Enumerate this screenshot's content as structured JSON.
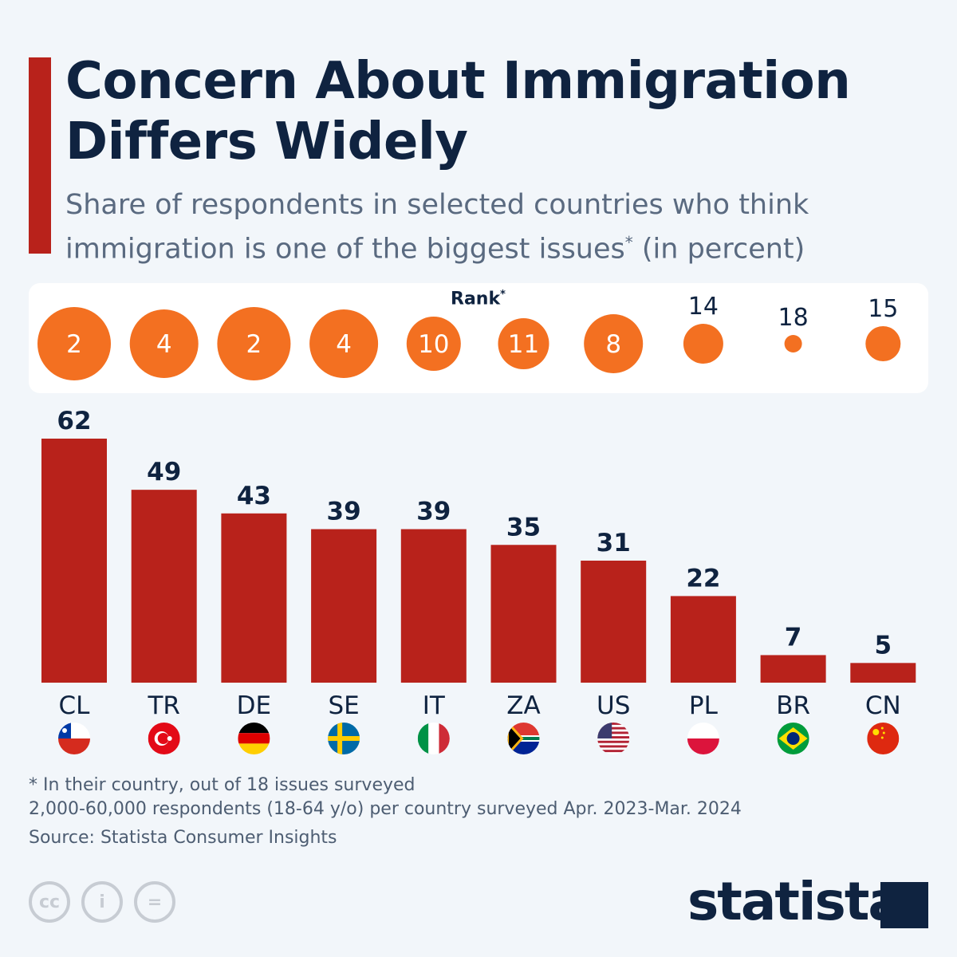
{
  "title": "Concern About Immigration Differs Widely",
  "subtitle": "Share of respondents in selected countries who think immigration is one of the biggest issues",
  "subtitle_sup": "*",
  "subtitle_tail": " (in percent)",
  "rank_label": "Rank",
  "rank_sup": "*",
  "chart_data": {
    "type": "bar",
    "categories": [
      "CL",
      "TR",
      "DE",
      "SE",
      "IT",
      "ZA",
      "US",
      "PL",
      "BR",
      "CN"
    ],
    "values": [
      62,
      49,
      43,
      39,
      39,
      35,
      31,
      22,
      7,
      5
    ],
    "ranks": [
      2,
      4,
      2,
      4,
      10,
      11,
      8,
      14,
      18,
      15
    ],
    "bar_color": "#b8221b",
    "rank_bubble_color": "#f37021",
    "ylim": [
      0,
      62
    ]
  },
  "footnote": "* In their country, out of 18 issues surveyed",
  "survey_note": "2,000-60,000 respondents (18-64 y/o) per country surveyed Apr. 2023-Mar. 2024",
  "source": "Source: Statista Consumer Insights",
  "logo": "statista",
  "license_icons": [
    "cc-icon",
    "attribution-icon",
    "no-derivatives-icon"
  ]
}
